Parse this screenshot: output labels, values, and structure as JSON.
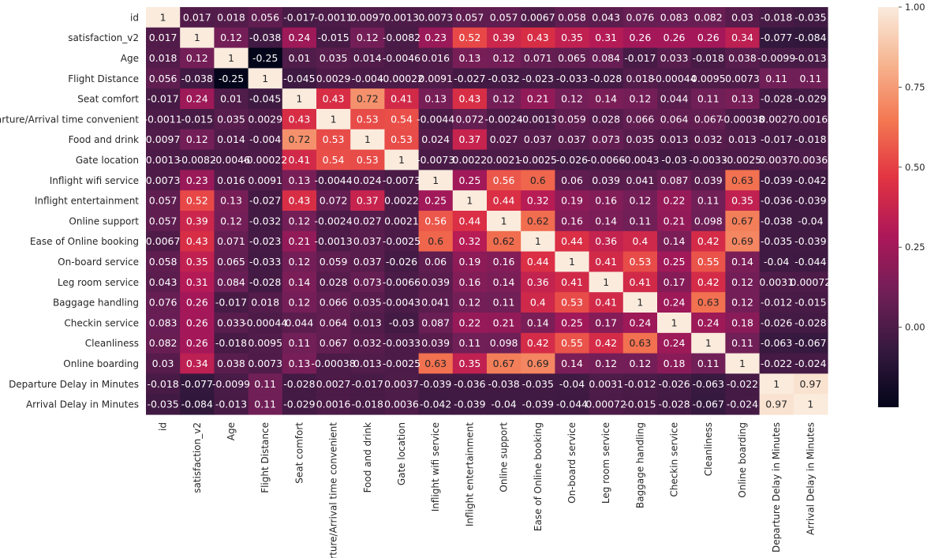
{
  "chart_data": {
    "type": "heatmap",
    "title": "",
    "xlabel": "",
    "ylabel": "",
    "labels": [
      "id",
      "satisfaction_v2",
      "Age",
      "Flight Distance",
      "Seat comfort",
      "Departure/Arrival time convenient",
      "Food and drink",
      "Gate location",
      "Inflight wifi service",
      "Inflight entertainment",
      "Online support",
      "Ease of Online booking",
      "On-board service",
      "Leg room service",
      "Baggage handling",
      "Checkin service",
      "Cleanliness",
      "Online boarding",
      "Departure Delay in Minutes",
      "Arrival Delay in Minutes"
    ],
    "annotations": [
      [
        "1",
        "0.017",
        "0.018",
        "0.056",
        "-0.017",
        "-0.0011",
        "0.0097",
        "0.0013",
        "0.0073",
        "0.057",
        "0.057",
        "0.0067",
        "0.058",
        "0.043",
        "0.076",
        "0.083",
        "0.082",
        "0.03",
        "-0.018",
        "-0.035"
      ],
      [
        "0.017",
        "1",
        "0.12",
        "-0.038",
        "0.24",
        "-0.015",
        "0.12",
        "-0.0082",
        "0.23",
        "0.52",
        "0.39",
        "0.43",
        "0.35",
        "0.31",
        "0.26",
        "0.26",
        "0.26",
        "0.34",
        "-0.077",
        "-0.084"
      ],
      [
        "0.018",
        "0.12",
        "1",
        "-0.25",
        "0.01",
        "0.035",
        "0.014",
        "-0.0046",
        "0.016",
        "0.13",
        "0.12",
        "0.071",
        "0.065",
        "0.084",
        "-0.017",
        "0.033",
        "-0.018",
        "0.038",
        "-0.0099",
        "-0.013"
      ],
      [
        "0.056",
        "-0.038",
        "-0.25",
        "1",
        "-0.045",
        "0.0029",
        "-0.004",
        "-0.00022",
        "0.0091",
        "-0.027",
        "-0.032",
        "-0.023",
        "-0.033",
        "-0.028",
        "0.018",
        "-0.00044",
        "0.0095",
        "0.0073",
        "0.11",
        "0.11"
      ],
      [
        "-0.017",
        "0.24",
        "0.01",
        "-0.045",
        "1",
        "0.43",
        "0.72",
        "0.41",
        "0.13",
        "0.43",
        "0.12",
        "0.21",
        "0.12",
        "0.14",
        "0.12",
        "0.044",
        "0.11",
        "0.13",
        "-0.028",
        "-0.029"
      ],
      [
        "-0.0011",
        "-0.015",
        "0.035",
        "0.0029",
        "0.43",
        "1",
        "0.53",
        "0.54",
        "-0.0044",
        "0.072",
        "-0.0024",
        "-0.0013",
        "0.059",
        "0.028",
        "0.066",
        "0.064",
        "0.067",
        "-0.00038",
        "0.0027",
        "0.0016"
      ],
      [
        "0.0097",
        "0.12",
        "0.014",
        "-0.004",
        "0.72",
        "0.53",
        "1",
        "0.53",
        "0.024",
        "0.37",
        "0.027",
        "0.037",
        "0.037",
        "0.073",
        "0.035",
        "0.013",
        "0.032",
        "0.013",
        "-0.017",
        "-0.018"
      ],
      [
        "0.0013",
        "-0.0082",
        "-0.0046",
        "-0.00022",
        "0.41",
        "0.54",
        "0.53",
        "1",
        "-0.0073",
        "0.0022",
        "0.0021",
        "-0.0025",
        "-0.026",
        "-0.0066",
        "-0.0043",
        "-0.03",
        "-0.0033",
        "-0.0025",
        "0.0037",
        "0.0036"
      ],
      [
        "0.0073",
        "0.23",
        "0.016",
        "0.0091",
        "0.13",
        "-0.0044",
        "0.024",
        "-0.0073",
        "1",
        "0.25",
        "0.56",
        "0.6",
        "0.06",
        "0.039",
        "0.041",
        "0.087",
        "0.039",
        "0.63",
        "-0.039",
        "-0.042"
      ],
      [
        "0.057",
        "0.52",
        "0.13",
        "-0.027",
        "0.43",
        "0.072",
        "0.37",
        "0.0022",
        "0.25",
        "1",
        "0.44",
        "0.32",
        "0.19",
        "0.16",
        "0.12",
        "0.22",
        "0.11",
        "0.35",
        "-0.036",
        "-0.039"
      ],
      [
        "0.057",
        "0.39",
        "0.12",
        "-0.032",
        "0.12",
        "-0.0024",
        "0.027",
        "0.0021",
        "0.56",
        "0.44",
        "1",
        "0.62",
        "0.16",
        "0.14",
        "0.11",
        "0.21",
        "0.098",
        "0.67",
        "-0.038",
        "-0.04"
      ],
      [
        "0.0067",
        "0.43",
        "0.071",
        "-0.023",
        "0.21",
        "-0.0013",
        "0.037",
        "-0.0025",
        "0.6",
        "0.32",
        "0.62",
        "1",
        "0.44",
        "0.36",
        "0.4",
        "0.14",
        "0.42",
        "0.69",
        "-0.035",
        "-0.039"
      ],
      [
        "0.058",
        "0.35",
        "0.065",
        "-0.033",
        "0.12",
        "0.059",
        "0.037",
        "-0.026",
        "0.06",
        "0.19",
        "0.16",
        "0.44",
        "1",
        "0.41",
        "0.53",
        "0.25",
        "0.55",
        "0.14",
        "-0.04",
        "-0.044"
      ],
      [
        "0.043",
        "0.31",
        "0.084",
        "-0.028",
        "0.14",
        "0.028",
        "0.073",
        "-0.0066",
        "0.039",
        "0.16",
        "0.14",
        "0.36",
        "0.41",
        "1",
        "0.41",
        "0.17",
        "0.42",
        "0.12",
        "0.0031",
        "0.00072"
      ],
      [
        "0.076",
        "0.26",
        "-0.017",
        "0.018",
        "0.12",
        "0.066",
        "0.035",
        "-0.0043",
        "0.041",
        "0.12",
        "0.11",
        "0.4",
        "0.53",
        "0.41",
        "1",
        "0.24",
        "0.63",
        "0.12",
        "-0.012",
        "-0.015"
      ],
      [
        "0.083",
        "0.26",
        "0.033",
        "-0.00044",
        "0.044",
        "0.064",
        "0.013",
        "-0.03",
        "0.087",
        "0.22",
        "0.21",
        "0.14",
        "0.25",
        "0.17",
        "0.24",
        "1",
        "0.24",
        "0.18",
        "-0.026",
        "-0.028"
      ],
      [
        "0.082",
        "0.26",
        "-0.018",
        "0.0095",
        "0.11",
        "0.067",
        "0.032",
        "-0.0033",
        "0.039",
        "0.11",
        "0.098",
        "0.42",
        "0.55",
        "0.42",
        "0.63",
        "0.24",
        "1",
        "0.11",
        "-0.063",
        "-0.067"
      ],
      [
        "0.03",
        "0.34",
        "0.038",
        "0.0073",
        "0.13",
        "-0.00038",
        "0.013",
        "-0.0025",
        "0.63",
        "0.35",
        "0.67",
        "0.69",
        "0.14",
        "0.12",
        "0.12",
        "0.18",
        "0.11",
        "1",
        "-0.022",
        "-0.024"
      ],
      [
        "-0.018",
        "-0.077",
        "-0.0099",
        "0.11",
        "-0.028",
        "0.0027",
        "-0.017",
        "0.0037",
        "-0.039",
        "-0.036",
        "-0.038",
        "-0.035",
        "-0.04",
        "0.0031",
        "-0.012",
        "-0.026",
        "-0.063",
        "-0.022",
        "1",
        "0.97"
      ],
      [
        "-0.035",
        "-0.084",
        "-0.013",
        "0.11",
        "-0.029",
        "0.0016",
        "-0.018",
        "0.0036",
        "-0.042",
        "-0.039",
        "-0.04",
        "-0.039",
        "-0.044",
        "0.00072",
        "-0.015",
        "-0.028",
        "-0.067",
        "-0.024",
        "0.97",
        "1"
      ]
    ],
    "colorbar": {
      "range": [
        -0.25,
        1.0
      ],
      "ticks": [
        0.0,
        0.25,
        0.5,
        0.75,
        1.0
      ],
      "tick_labels": [
        "0.00",
        "0.25",
        "0.50",
        "0.75",
        "1.00"
      ],
      "colormap": "rocket"
    },
    "grid": false,
    "legend": "colorbar-right"
  },
  "colors": {
    "rocket_stops": [
      "#03051a",
      "#35193e",
      "#701f57",
      "#ad1759",
      "#e13342",
      "#f37651",
      "#f6b48f",
      "#faebdd"
    ],
    "text_dark": "#262626",
    "annot_light": "#ffffff",
    "annot_dark": "#262626"
  }
}
